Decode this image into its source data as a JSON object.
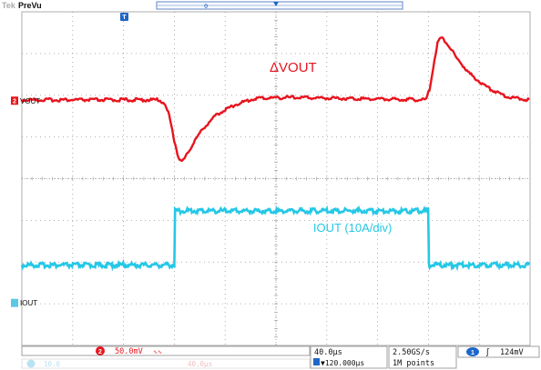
{
  "header": {
    "brand": "Tek",
    "mode": "PreVu",
    "trigger_marker": "T",
    "record_marker": "0"
  },
  "colors": {
    "background": "#ffffff",
    "grid": "#9a9a9a",
    "ch1": "#e8141e",
    "ch2": "#25c8e6",
    "ch2_marker": "#5cc8e8",
    "trigger_badge": "#1e66c8",
    "status_text": "#111111",
    "status_border": "#8a8a8a"
  },
  "chart_data": {
    "type": "line",
    "x_unit": "µs",
    "x_range": [
      -120,
      280
    ],
    "x_div": 40,
    "y_div_count": 8,
    "x_div_count": 10,
    "grid": true,
    "series": [
      {
        "name": "VOUT",
        "channel": 2,
        "color": "#e8141e",
        "scale": "50.0mV",
        "unit": "div",
        "ref_level": 0.0,
        "points": [
          [
            -120,
            0.0
          ],
          [
            -12,
            0.0
          ],
          [
            -8,
            -0.1
          ],
          [
            -4,
            -0.5
          ],
          [
            0,
            -1.3
          ],
          [
            3,
            -1.8
          ],
          [
            6,
            -2.0
          ],
          [
            10,
            -1.75
          ],
          [
            16,
            -1.3
          ],
          [
            24,
            -0.85
          ],
          [
            34,
            -0.45
          ],
          [
            48,
            -0.15
          ],
          [
            64,
            0.05
          ],
          [
            90,
            0.08
          ],
          [
            120,
            0.06
          ],
          [
            160,
            0.03
          ],
          [
            198,
            0.0
          ],
          [
            201,
            0.35
          ],
          [
            204,
            1.1
          ],
          [
            207,
            1.8
          ],
          [
            210,
            2.0
          ],
          [
            214,
            1.85
          ],
          [
            222,
            1.35
          ],
          [
            232,
            0.85
          ],
          [
            246,
            0.4
          ],
          [
            262,
            0.1
          ],
          [
            280,
            0.0
          ]
        ]
      },
      {
        "name": "IOUT",
        "channel": 1,
        "color": "#25c8e6",
        "scale": "10A/div",
        "unit": "div",
        "low": -1.1,
        "high": 0.2,
        "step_up_at": 0,
        "step_down_at": 200
      }
    ],
    "annotations": [
      {
        "id": "dvout",
        "text": "ΔVOUT",
        "time": 75,
        "level": 0.75,
        "color": "#e8141e"
      },
      {
        "id": "iout",
        "text": "IOUT (10A/div)",
        "time": 100,
        "level": -0.75,
        "color": "#25c8e6"
      }
    ],
    "channel_markers": [
      {
        "id": "ch2",
        "number": "2",
        "label": "VOUT",
        "level": 0.0,
        "color": "#e8141e"
      },
      {
        "id": "ch1",
        "number": "",
        "label": "IOUT",
        "level": -3.3,
        "color": "#5cc8e8"
      }
    ]
  },
  "status_bar": {
    "ch2_number": "2",
    "ch2_scale": "50.0mV",
    "ch2_coupling": "∿∿",
    "ch1_faded": "10.0",
    "ch1_faded_2": "40.0µs",
    "timebase": "40.0µs",
    "position": "▼120.000µs",
    "sample_rate": "2.50GS/s",
    "record_length": "1M points",
    "trig_channel": "1",
    "trig_slope": "ʃ",
    "trig_level": "124mV"
  }
}
